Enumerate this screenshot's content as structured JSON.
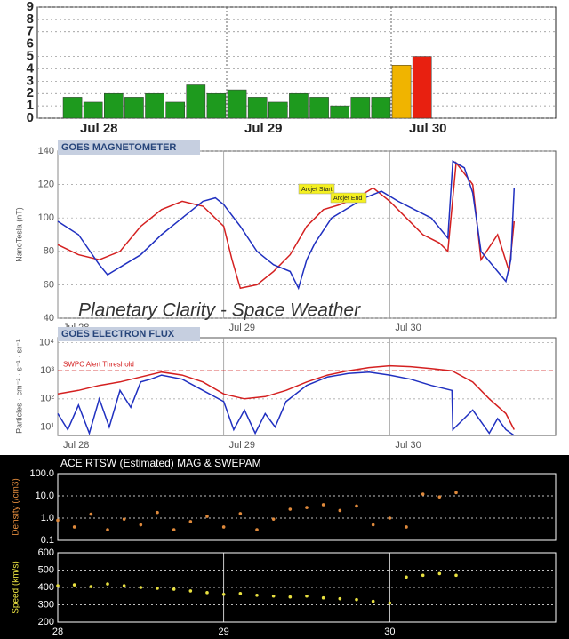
{
  "chart_data": [
    {
      "type": "bar",
      "categories": [
        "Jul 28",
        null,
        null,
        null,
        null,
        null,
        null,
        null,
        "Jul 29",
        null,
        null,
        null,
        null,
        null,
        null,
        null,
        "Jul 30",
        null,
        null,
        null,
        null,
        null,
        null,
        null
      ],
      "values": [
        1.7,
        1.3,
        2,
        1.7,
        2,
        1.3,
        2.7,
        2,
        2.3,
        1.7,
        1.3,
        2,
        1.7,
        1,
        1.7,
        1.7,
        4.3,
        5,
        null,
        null,
        null,
        null,
        null,
        null
      ],
      "colors": [
        "#1e9a1e",
        "#1e9a1e",
        "#1e9a1e",
        "#1e9a1e",
        "#1e9a1e",
        "#1e9a1e",
        "#1e9a1e",
        "#1e9a1e",
        "#1e9a1e",
        "#1e9a1e",
        "#1e9a1e",
        "#1e9a1e",
        "#1e9a1e",
        "#1e9a1e",
        "#1e9a1e",
        "#1e9a1e",
        "#f0b400",
        "#e82010",
        null,
        null,
        null,
        null,
        null,
        null
      ],
      "ylim": [
        0,
        9
      ],
      "yticks": [
        0,
        1,
        2,
        3,
        4,
        5,
        6,
        7,
        8,
        9
      ],
      "grid": true
    },
    {
      "type": "line",
      "title": "GOES MAGNETOMETER",
      "y_label": "NanoTesla (nT)",
      "annotations": [
        "Arcjet Start",
        "Arcjet End"
      ],
      "watermark": "Planetary Clarity - Space Weather",
      "xlim": [
        0,
        3
      ],
      "xticks": [
        {
          "value": 0,
          "label": "Jul 28"
        },
        {
          "value": 1,
          "label": "Jul 29"
        },
        {
          "value": 2,
          "label": "Jul 30"
        }
      ],
      "ylim": [
        40,
        140
      ],
      "yticks": [
        40,
        60,
        80,
        100,
        120,
        140
      ],
      "series": [
        {
          "color": "#d42020",
          "x": [
            0,
            0.125,
            0.25,
            0.375,
            0.5,
            0.625,
            0.75,
            0.875,
            1.0,
            1.05,
            1.1,
            1.2,
            1.3,
            1.4,
            1.5,
            1.6,
            1.7,
            1.8,
            1.9,
            2.0,
            2.1,
            2.2,
            2.3,
            2.35,
            2.4,
            2.5,
            2.55,
            2.65,
            2.72,
            2.75
          ],
          "values": [
            84,
            78,
            75,
            80,
            95,
            105,
            110,
            107,
            95,
            75,
            58,
            60,
            68,
            78,
            95,
            105,
            108,
            112,
            118,
            110,
            100,
            90,
            85,
            80,
            133,
            120,
            75,
            90,
            68,
            98
          ]
        },
        {
          "color": "#2030c0",
          "x": [
            0,
            0.125,
            0.25,
            0.3,
            0.4,
            0.5,
            0.625,
            0.75,
            0.875,
            0.95,
            1.0,
            1.1,
            1.2,
            1.3,
            1.4,
            1.45,
            1.5,
            1.55,
            1.65,
            1.75,
            1.85,
            1.95,
            2.05,
            2.15,
            2.25,
            2.35,
            2.38,
            2.45,
            2.5,
            2.55,
            2.65,
            2.7,
            2.73,
            2.75
          ],
          "values": [
            98,
            90,
            72,
            66,
            72,
            78,
            90,
            100,
            110,
            112,
            108,
            95,
            80,
            72,
            68,
            58,
            75,
            85,
            100,
            106,
            112,
            116,
            110,
            105,
            100,
            88,
            134,
            130,
            115,
            80,
            68,
            62,
            75,
            118
          ]
        }
      ]
    },
    {
      "type": "line",
      "title": "GOES ELECTRON FLUX",
      "y_label": "Particles · cm⁻² · s⁻¹ · sr⁻¹",
      "log": true,
      "threshold": {
        "label": "SWPC Alert Threshold",
        "value": 1000
      },
      "xlim": [
        0,
        3
      ],
      "xticks": [
        {
          "value": 0,
          "label": "Jul 28"
        },
        {
          "value": 1,
          "label": "Jul 29"
        },
        {
          "value": 2,
          "label": "Jul 30"
        }
      ],
      "ylim": [
        5,
        15000
      ],
      "yticks": [
        {
          "value": 10,
          "label": "10¹"
        },
        {
          "value": 100,
          "label": "10²"
        },
        {
          "value": 1000,
          "label": "10³"
        },
        {
          "value": 10000,
          "label": "10⁴"
        }
      ],
      "series": [
        {
          "color": "#d42020",
          "x": [
            0,
            0.125,
            0.25,
            0.375,
            0.5,
            0.625,
            0.75,
            0.875,
            1.0,
            1.125,
            1.25,
            1.375,
            1.5,
            1.625,
            1.75,
            1.875,
            2.0,
            2.125,
            2.25,
            2.375,
            2.5,
            2.6,
            2.7,
            2.75
          ],
          "values": [
            150,
            200,
            300,
            400,
            600,
            900,
            700,
            400,
            150,
            100,
            120,
            200,
            400,
            700,
            1000,
            1300,
            1500,
            1400,
            1200,
            1000,
            400,
            100,
            30,
            8
          ]
        },
        {
          "color": "#2030c0",
          "x": [
            0,
            0.06,
            0.125,
            0.19,
            0.25,
            0.31,
            0.375,
            0.44,
            0.5,
            0.56,
            0.625,
            0.75,
            0.875,
            1.0,
            1.06,
            1.125,
            1.19,
            1.25,
            1.31,
            1.375,
            1.5,
            1.625,
            1.75,
            1.875,
            2.0,
            2.125,
            2.25,
            2.375,
            2.38,
            2.5,
            2.6,
            2.65,
            2.7,
            2.75
          ],
          "values": [
            30,
            8,
            60,
            6,
            100,
            10,
            200,
            50,
            400,
            500,
            700,
            500,
            200,
            80,
            8,
            40,
            6,
            30,
            10,
            80,
            300,
            600,
            800,
            900,
            700,
            500,
            300,
            200,
            8,
            40,
            6,
            20,
            8,
            5
          ]
        }
      ]
    },
    {
      "type": "scatter",
      "title": "ACE RTSW (Estimated) MAG & SWEPAM",
      "y_label": "Density (/cm3)",
      "log": true,
      "xlim": [
        0,
        3
      ],
      "ylim": [
        0.1,
        100
      ],
      "yticks": [
        0.1,
        {
          "value": 1,
          "label": "1.0"
        },
        {
          "value": 10,
          "label": "10.0"
        },
        {
          "value": 100,
          "label": "100.0"
        }
      ],
      "series": [
        {
          "color": "#e08a3c",
          "x": [
            0,
            0.1,
            0.2,
            0.3,
            0.4,
            0.5,
            0.6,
            0.7,
            0.8,
            0.9,
            1.0,
            1.1,
            1.2,
            1.3,
            1.4,
            1.5,
            1.6,
            1.7,
            1.8,
            1.9,
            2.0,
            2.1,
            2.2,
            2.3,
            2.4
          ],
          "values": [
            0.8,
            0.4,
            1.5,
            0.3,
            0.9,
            0.5,
            1.8,
            0.3,
            0.7,
            1.2,
            0.4,
            1.6,
            0.3,
            0.9,
            2.5,
            3,
            4,
            2.2,
            3.5,
            0.5,
            1,
            0.4,
            12,
            9,
            14
          ]
        }
      ]
    },
    {
      "type": "scatter",
      "y_label": "Speed (km/s)",
      "xlim": [
        0,
        3
      ],
      "xticks": [
        {
          "value": 0,
          "label": "28"
        },
        {
          "value": 1,
          "label": "29"
        },
        {
          "value": 2,
          "label": "30"
        }
      ],
      "ylim": [
        200,
        600
      ],
      "yticks": [
        200,
        300,
        400,
        500,
        600
      ],
      "series": [
        {
          "color": "#e8e040",
          "x": [
            0,
            0.1,
            0.2,
            0.3,
            0.4,
            0.5,
            0.6,
            0.7,
            0.8,
            0.9,
            1.0,
            1.1,
            1.2,
            1.3,
            1.4,
            1.5,
            1.6,
            1.7,
            1.8,
            1.9,
            2.0,
            2.1,
            2.2,
            2.3,
            2.4
          ],
          "values": [
            410,
            415,
            405,
            420,
            410,
            400,
            395,
            390,
            380,
            370,
            360,
            365,
            355,
            350,
            345,
            350,
            340,
            335,
            330,
            320,
            310,
            460,
            470,
            480,
            470
          ]
        }
      ]
    }
  ]
}
